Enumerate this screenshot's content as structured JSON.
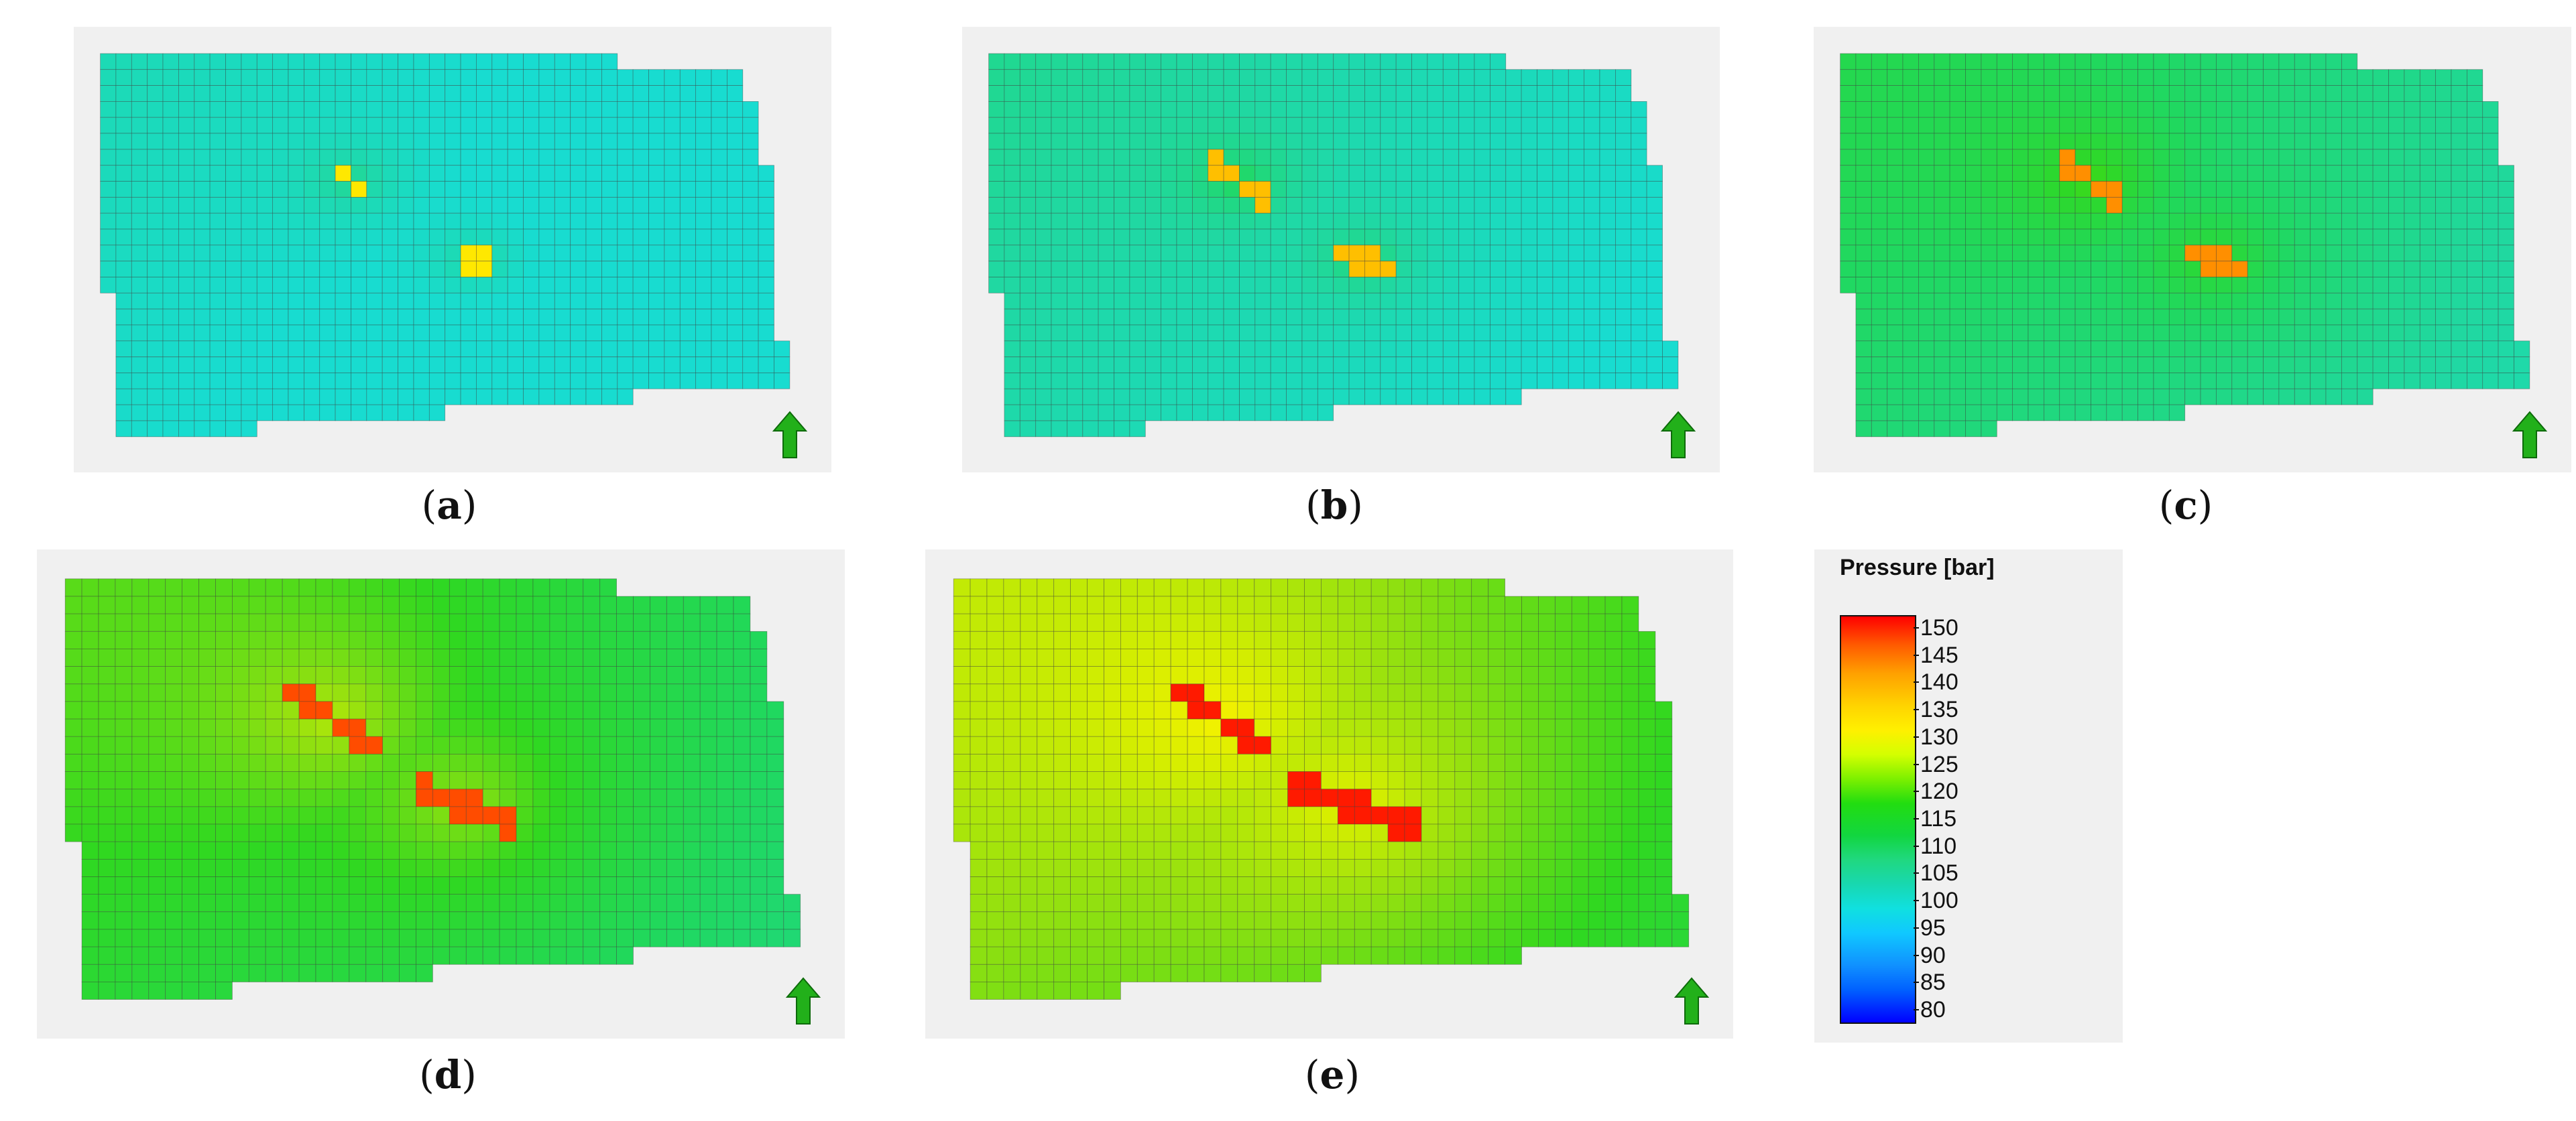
{
  "panels": [
    {
      "id": "a",
      "caption_letter": "a",
      "stage": 0
    },
    {
      "id": "b",
      "caption_letter": "b",
      "stage": 1
    },
    {
      "id": "c",
      "caption_letter": "c",
      "stage": 2
    },
    {
      "id": "d",
      "caption_letter": "d",
      "stage": 3
    },
    {
      "id": "e",
      "caption_letter": "e",
      "stage": 4
    }
  ],
  "legend": {
    "title": "Pressure [bar]",
    "ticks": [
      "150",
      "145",
      "140",
      "135",
      "130",
      "125",
      "120",
      "115",
      "110",
      "105",
      "100",
      "95",
      "90",
      "85",
      "80"
    ]
  },
  "colors": {
    "panel_bg": "#f0f0f0",
    "grid_line": "#3a3a3a",
    "arrow": "#22b01a",
    "hot": "#ff1a00"
  }
}
